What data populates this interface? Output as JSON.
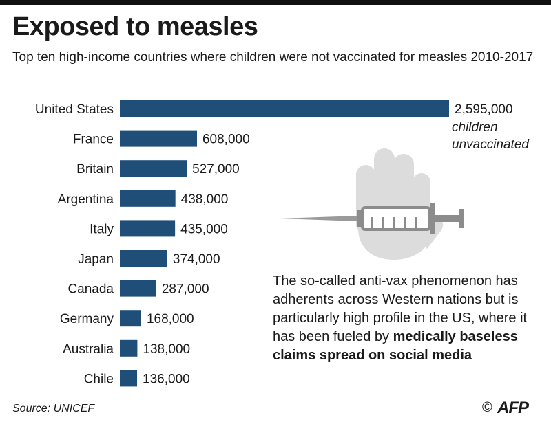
{
  "header": {
    "title": "Exposed to measles",
    "subtitle": "Top ten high-income countries where children were not vaccinated for measles 2010-2017"
  },
  "chart_data": {
    "type": "bar",
    "orientation": "horizontal",
    "title": "Exposed to measles",
    "subtitle": "Top ten high-income countries where children were not vaccinated for measles 2010-2017",
    "categories": [
      "United States",
      "France",
      "Britain",
      "Argentina",
      "Italy",
      "Japan",
      "Canada",
      "Germany",
      "Australia",
      "Chile"
    ],
    "values": [
      2595000,
      608000,
      527000,
      438000,
      435000,
      374000,
      287000,
      168000,
      138000,
      136000
    ],
    "value_labels": [
      "2,595,000",
      "608,000",
      "527,000",
      "438,000",
      "435,000",
      "374,000",
      "287,000",
      "168,000",
      "138,000",
      "136,000"
    ],
    "annotation": [
      "children",
      "unvaccinated"
    ],
    "xlim": [
      0,
      2595000
    ],
    "bar_color": "#1f4e79"
  },
  "note": {
    "text": "The so-called anti-vax phenomenon has adherents across Western nations but is particularly high profile in the US, where it has been fueled by",
    "emphasis": "medically baseless claims spread on social media"
  },
  "illustration": {
    "icon": "hand-with-syringe"
  },
  "footer": {
    "source": "Source: UNICEF",
    "copyright": "©",
    "logo": "AFP"
  }
}
